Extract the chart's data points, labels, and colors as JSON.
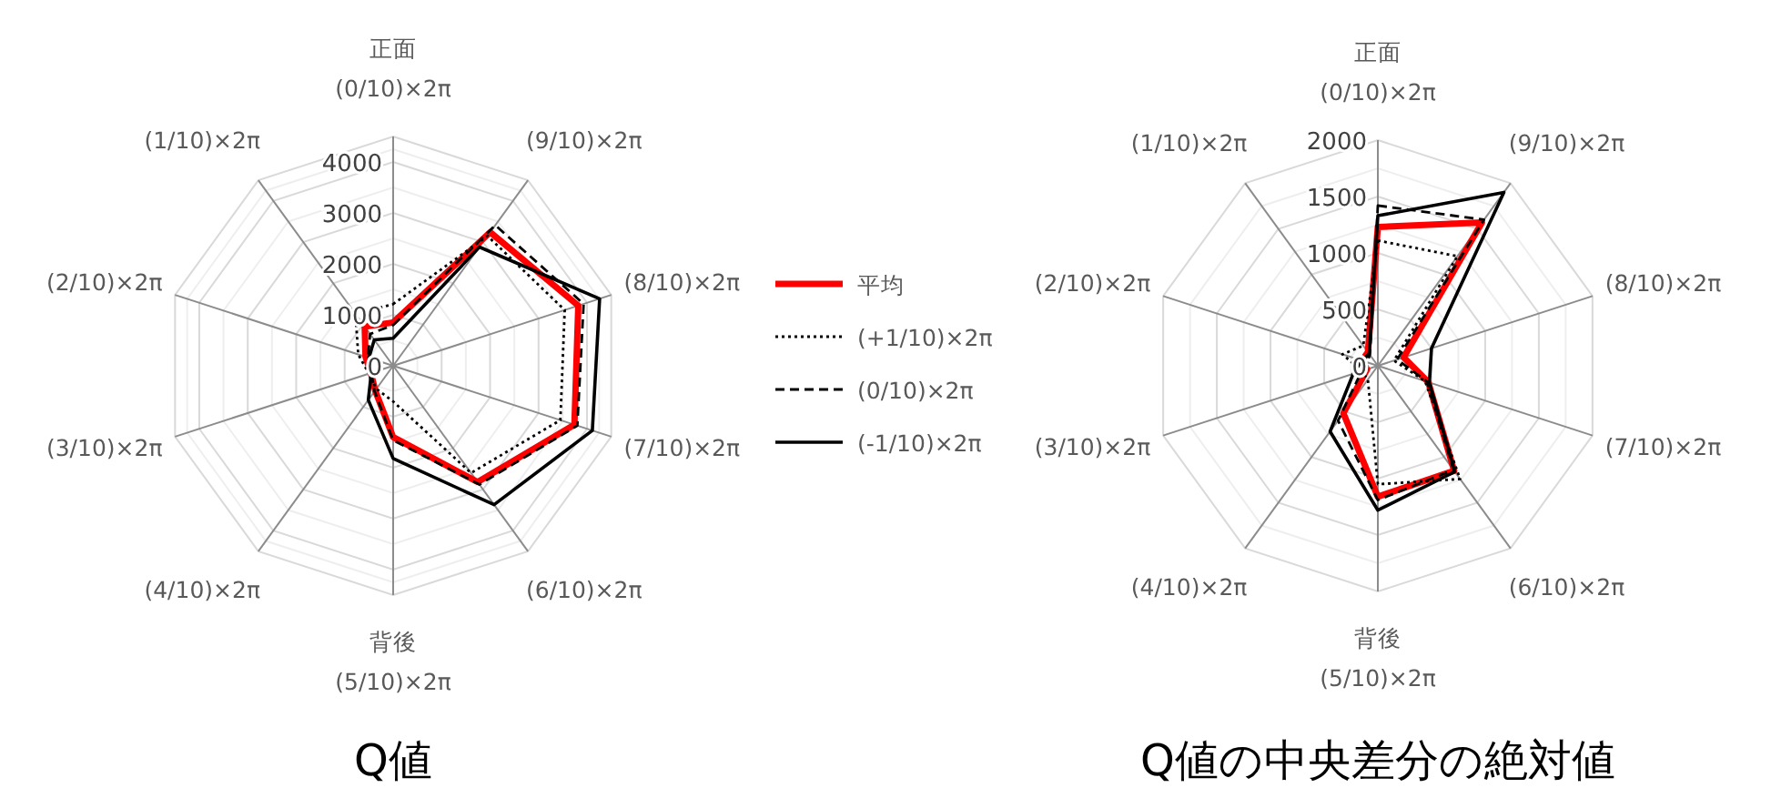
{
  "chart_data": [
    {
      "type": "radar",
      "title": "Q値",
      "categories": [
        "正面\n(0/10)×2π",
        "(9/10)×2π",
        "(8/10)×2π",
        "(7/10)×2π",
        "(6/10)×2π",
        "背後\n(5/10)×2π",
        "(4/10)×2π",
        "(3/10)×2π",
        "(2/10)×2π",
        "(1/10)×2π"
      ],
      "ylim": [
        0,
        4500
      ],
      "yticks": [
        0,
        1000,
        2000,
        3000,
        4000
      ],
      "grid": true,
      "legend": "right",
      "marker": "none",
      "series": [
        {
          "name": "平均",
          "color": "#ff0000",
          "line_style": "solid",
          "values": [
            850,
            3240,
            3820,
            3740,
            2820,
            1400,
            600,
            460,
            570,
            950
          ]
        },
        {
          "name": "(+1/10)×2π",
          "color": "#000000",
          "line_style": "dotted",
          "values": [
            1210,
            3150,
            3540,
            3450,
            2600,
            700,
            560,
            500,
            720,
            1260
          ]
        },
        {
          "name": "(0/10)×2π",
          "color": "#000000",
          "line_style": "dashed",
          "values": [
            800,
            3410,
            3930,
            3800,
            2880,
            1460,
            620,
            450,
            520,
            770
          ]
        },
        {
          "name": "(-1/10)×2π",
          "color": "#000000",
          "line_style": "solid",
          "values": [
            540,
            2880,
            4260,
            4110,
            3370,
            1820,
            830,
            450,
            500,
            630
          ]
        }
      ]
    },
    {
      "type": "radar",
      "title": "Q値の中央差分の絶対値",
      "categories": [
        "正面\n(0/10)×2π",
        "(9/10)×2π",
        "(8/10)×2π",
        "(7/10)×2π",
        "(6/10)×2π",
        "背後\n(5/10)×2π",
        "(4/10)×2π",
        "(3/10)×2π",
        "(2/10)×2π",
        "(1/10)×2π"
      ],
      "ylim": [
        0,
        2000
      ],
      "yticks": [
        0,
        500,
        1000,
        1500,
        2000
      ],
      "grid": true,
      "marker": "none",
      "series": [
        {
          "color": "#ff0000",
          "line_style": "solid",
          "values": [
            1230,
            1570,
            240,
            470,
            1150,
            1160,
            520,
            100,
            150,
            150
          ]
        },
        {
          "color": "#000000",
          "line_style": "dotted",
          "values": [
            1110,
            1200,
            150,
            440,
            1240,
            1050,
            150,
            150,
            330,
            220
          ]
        },
        {
          "color": "#000000",
          "line_style": "dashed",
          "values": [
            1420,
            1600,
            180,
            460,
            1140,
            1190,
            600,
            150,
            100,
            120
          ]
        },
        {
          "color": "#000000",
          "line_style": "solid",
          "values": [
            1330,
            1900,
            500,
            480,
            1160,
            1280,
            720,
            230,
            150,
            130
          ]
        }
      ]
    }
  ]
}
